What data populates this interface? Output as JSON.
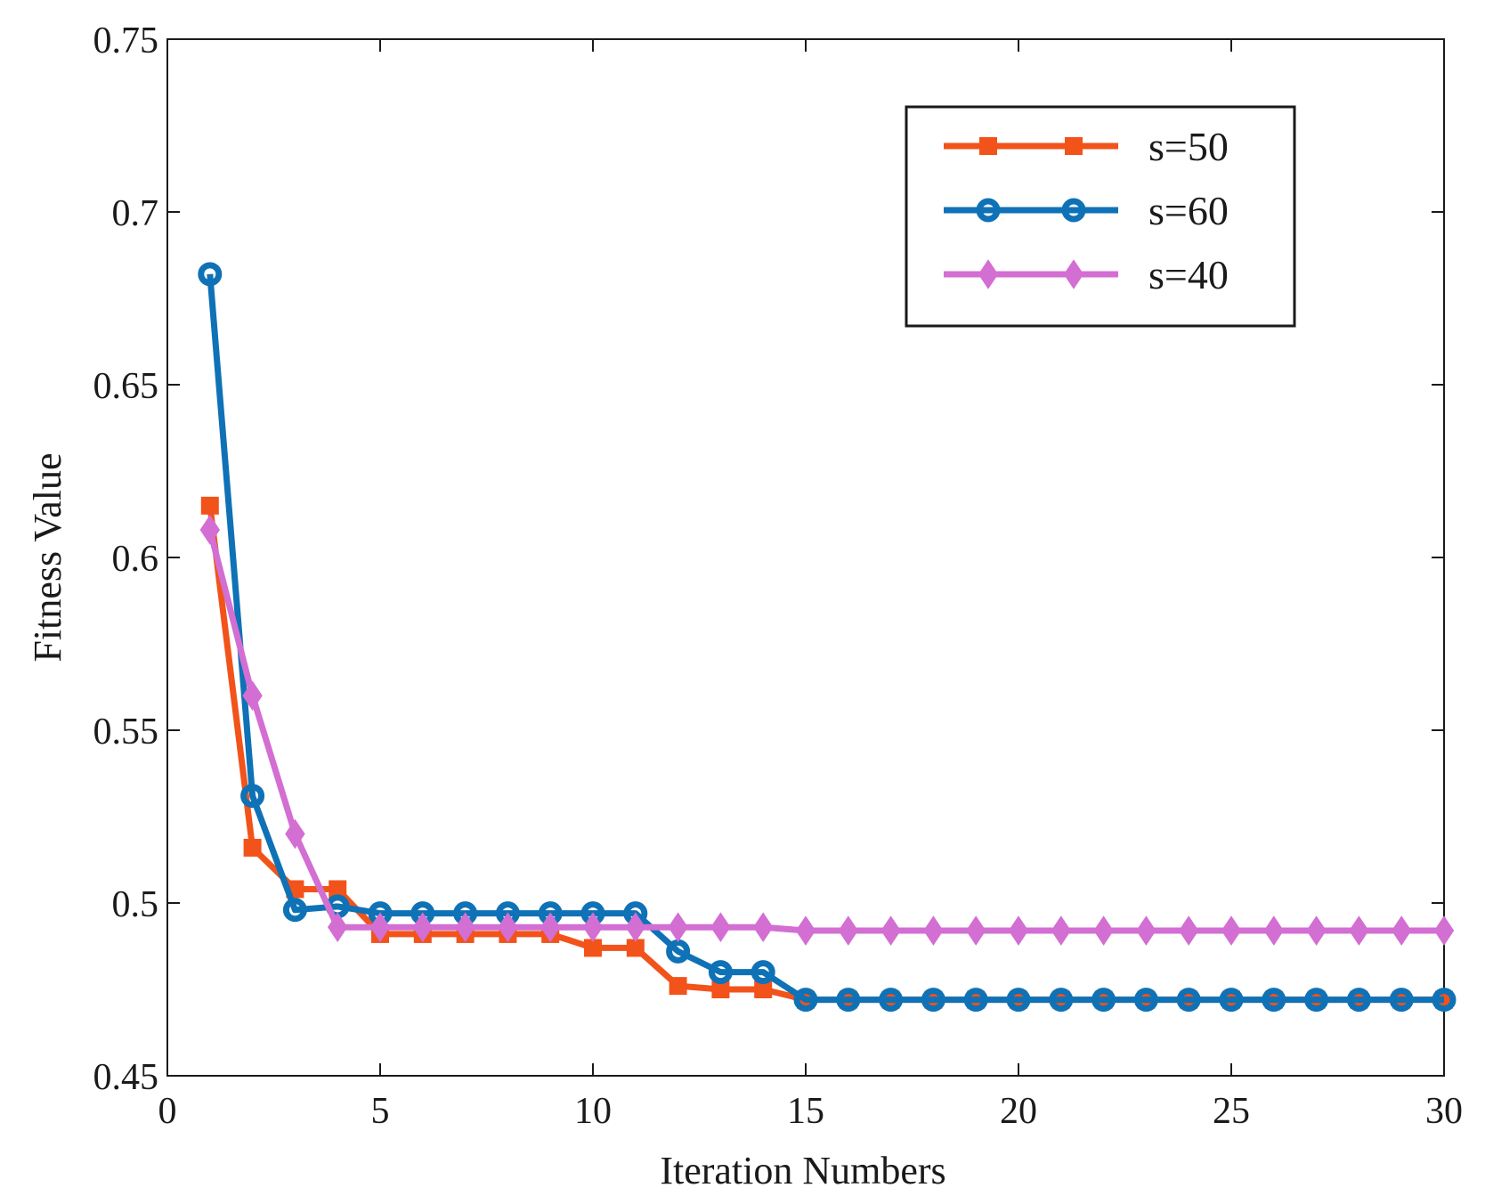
{
  "chart_data": {
    "type": "line",
    "title": "",
    "xlabel": "Iteration Numbers",
    "ylabel": "Fitness Value",
    "xlim": [
      0,
      30
    ],
    "ylim": [
      0.45,
      0.75
    ],
    "xticks": [
      0,
      5,
      10,
      15,
      20,
      25,
      30
    ],
    "xtick_labels": [
      "0",
      "5",
      "10",
      "15",
      "20",
      "25",
      "30"
    ],
    "yticks": [
      0.45,
      0.5,
      0.55,
      0.6,
      0.65,
      0.7,
      0.75
    ],
    "ytick_labels": [
      "0.45",
      "0.5",
      "0.55",
      "0.6",
      "0.65",
      "0.7",
      "0.75"
    ],
    "grid": false,
    "legend_position": "top-right",
    "x": [
      1,
      2,
      3,
      4,
      5,
      6,
      7,
      8,
      9,
      10,
      11,
      12,
      13,
      14,
      15,
      16,
      17,
      18,
      19,
      20,
      21,
      22,
      23,
      24,
      25,
      26,
      27,
      28,
      29,
      30
    ],
    "series": [
      {
        "name": "s=50",
        "color": "#F2531B",
        "marker": "square",
        "values": [
          0.615,
          0.516,
          0.504,
          0.504,
          0.491,
          0.491,
          0.491,
          0.491,
          0.491,
          0.487,
          0.487,
          0.476,
          0.475,
          0.475,
          0.472,
          0.472,
          0.472,
          0.472,
          0.472,
          0.472,
          0.472,
          0.472,
          0.472,
          0.472,
          0.472,
          0.472,
          0.472,
          0.472,
          0.472,
          0.472
        ]
      },
      {
        "name": "s=60",
        "color": "#0F72B6",
        "marker": "circle",
        "values": [
          0.682,
          0.531,
          0.498,
          0.499,
          0.497,
          0.497,
          0.497,
          0.497,
          0.497,
          0.497,
          0.497,
          0.486,
          0.48,
          0.48,
          0.472,
          0.472,
          0.472,
          0.472,
          0.472,
          0.472,
          0.472,
          0.472,
          0.472,
          0.472,
          0.472,
          0.472,
          0.472,
          0.472,
          0.472,
          0.472
        ]
      },
      {
        "name": "s=40",
        "color": "#D36ED3",
        "marker": "diamond",
        "values": [
          0.608,
          0.56,
          0.52,
          0.493,
          0.493,
          0.493,
          0.493,
          0.493,
          0.493,
          0.493,
          0.493,
          0.493,
          0.493,
          0.493,
          0.492,
          0.492,
          0.492,
          0.492,
          0.492,
          0.492,
          0.492,
          0.492,
          0.492,
          0.492,
          0.492,
          0.492,
          0.492,
          0.492,
          0.492,
          0.492
        ]
      }
    ]
  }
}
